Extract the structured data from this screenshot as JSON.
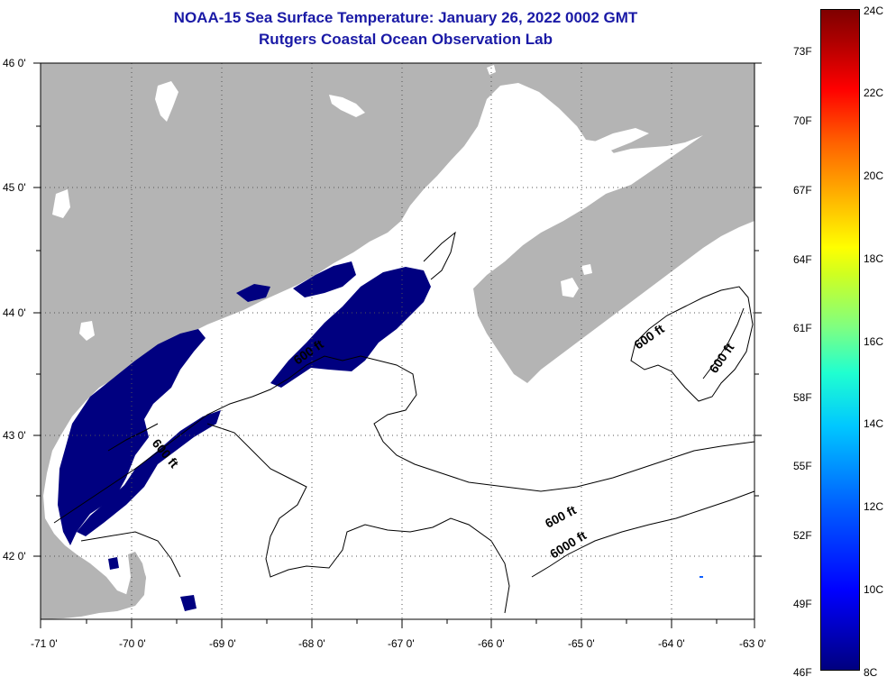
{
  "title": {
    "line1": "NOAA-15 Sea Surface Temperature:  January 26, 2022 0002 GMT",
    "line2": "Rutgers Coastal Ocean Observation Lab"
  },
  "map": {
    "lat_labels": [
      "46 0'",
      "45 0'",
      "44 0'",
      "43 0'",
      "42 0'"
    ],
    "lon_labels": [
      "-71 0'",
      "-70 0'",
      "-69 0'",
      "-68 0'",
      "-67 0'",
      "-66 0'",
      "-65 0'",
      "-64 0'",
      "-63 0'"
    ],
    "contour_labels": [
      "600 ft",
      "600 ft",
      "600 ft",
      "600 ft",
      "6000 ft",
      "600 ft"
    ]
  },
  "colorbar": {
    "fahrenheit": [
      "73F",
      "70F",
      "67F",
      "64F",
      "61F",
      "58F",
      "55F",
      "52F",
      "49F",
      "46F"
    ],
    "celsius": [
      "24C",
      "22C",
      "20C",
      "18C",
      "16C",
      "14C",
      "12C",
      "10C",
      "8C"
    ]
  },
  "colors": {
    "land": "#b4b4b4",
    "cold_water": "#000080",
    "title": "#1a1aa6"
  }
}
